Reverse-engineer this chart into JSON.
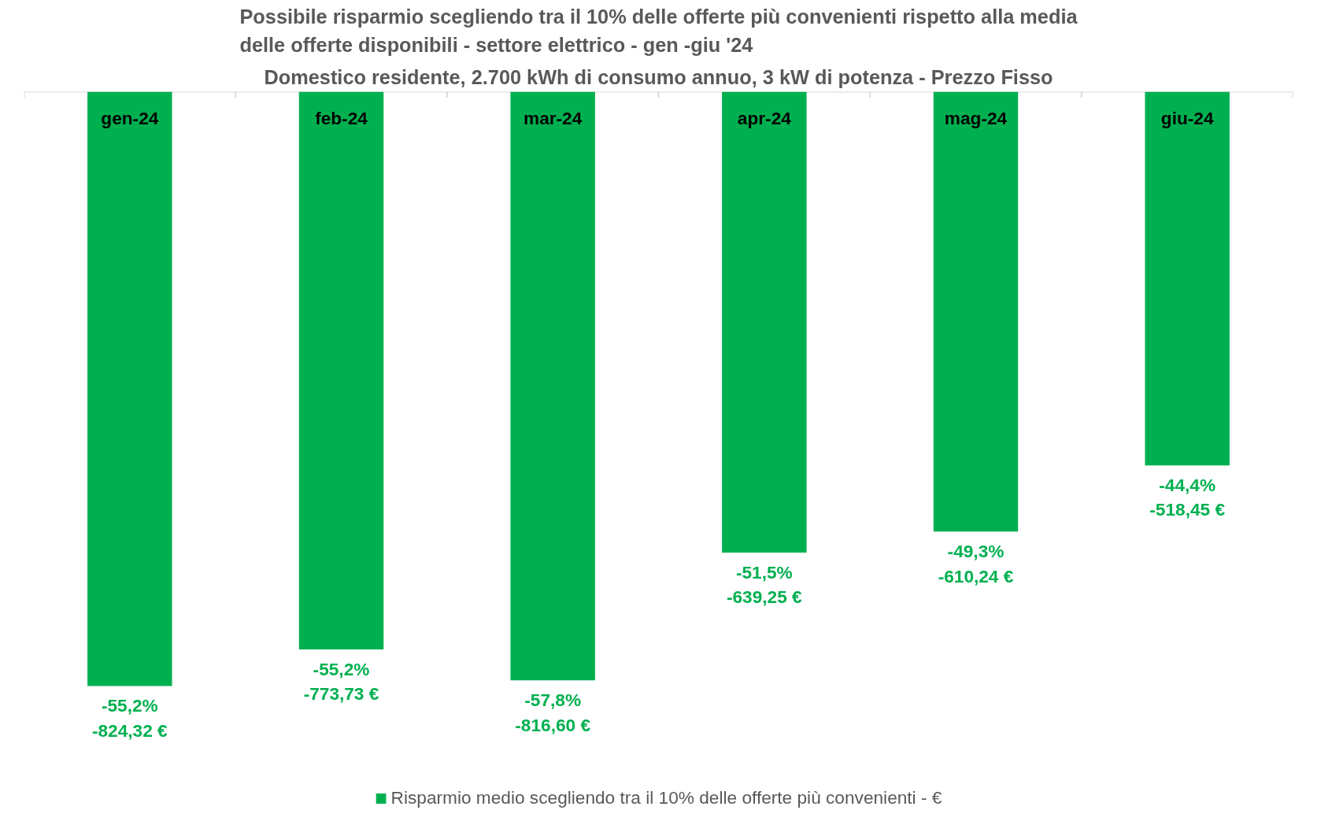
{
  "chart_data": {
    "type": "bar",
    "title": "Possibile risparmio scegliendo tra il 10% delle offerte più convenienti rispetto alla media delle offerte disponibili - settore elettrico - gen -giu '24",
    "subtitle": "Domestico residente, 2.700 kWh di consumo annuo, 3 kW di potenza - Prezzo Fisso",
    "categories": [
      "gen-24",
      "feb-24",
      "mar-24",
      "apr-24",
      "mag-24",
      "giu-24"
    ],
    "series": [
      {
        "name": "Risparmio medio scegliendo tra il 10% delle offerte più convenienti - €",
        "color": "#00b050",
        "values": [
          -824.32,
          -773.73,
          -816.6,
          -639.25,
          -610.24,
          -518.45
        ],
        "value_labels": [
          "-55,2%\n-824,32 €",
          "-55,2%\n-773,73 €",
          "-57,8%\n-816,60 €",
          "-51,5%\n-639,25 €",
          "-49,3%\n-610,24 €",
          "-44,4%\n-518,45 €"
        ]
      }
    ],
    "grid": false,
    "legend": "bottom"
  }
}
